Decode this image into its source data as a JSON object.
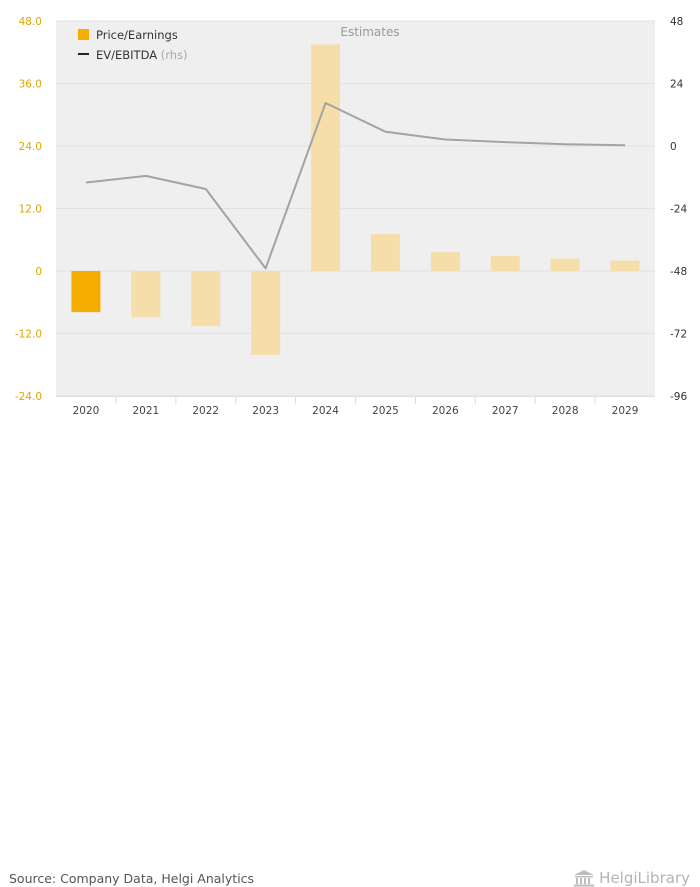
{
  "chart_data": {
    "type": "bar",
    "categories": [
      "2020",
      "2021",
      "2022",
      "2023",
      "2024",
      "2025",
      "2026",
      "2027",
      "2028",
      "2029"
    ],
    "series": [
      {
        "name": "Price/Earnings",
        "kind": "bar",
        "axis": "left",
        "values": [
          -7.9,
          -8.9,
          -10.6,
          -16.1,
          43.5,
          7.1,
          3.6,
          2.9,
          2.4,
          2.0
        ]
      },
      {
        "name": "EV/EBITDA",
        "kind": "line",
        "axis": "right",
        "values": [
          -14.0,
          -11.5,
          -16.5,
          -47.0,
          16.5,
          5.5,
          2.5,
          1.5,
          0.7,
          0.3
        ]
      }
    ],
    "left_axis": {
      "min": -24,
      "max": 48,
      "ticks": [
        "48.0",
        "36.0",
        "24.0",
        "12.0",
        "0",
        "-12.0",
        "-24.0"
      ]
    },
    "right_axis": {
      "min": -96,
      "max": 48,
      "ticks": [
        "48",
        "24",
        "0",
        "-24",
        "-48",
        "-72",
        "-96"
      ]
    },
    "estimates_label": "Estimates",
    "estimates_from": "2024",
    "legend": {
      "bar_label": "Price/Earnings",
      "line_label": "EV/EBITDA",
      "line_suffix": "(rhs)",
      "position": "top-left"
    },
    "grid": true
  },
  "colors": {
    "bar_actual": "#f5ad00",
    "bar_estimate": "#f5deaa",
    "line": "#a3a3a3",
    "left_tick": "#e0a500",
    "right_tick": "#333333",
    "plot_bg": "#efefef"
  },
  "footer": {
    "source": "Source: Company Data, Helgi Analytics",
    "logo_text": "HelgiLibrary",
    "logo_icon": "library-building-icon"
  }
}
